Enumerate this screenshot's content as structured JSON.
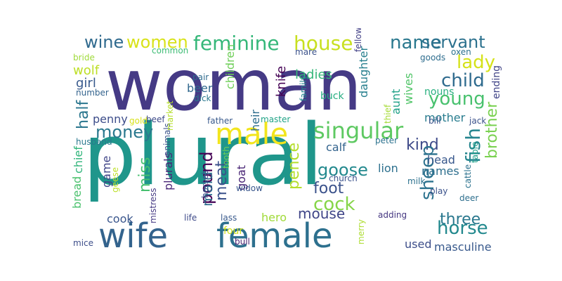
{
  "words": [
    {
      "text": "woman",
      "color": "#453a85"
    },
    {
      "text": "plural",
      "color": "#1f968b"
    },
    {
      "text": "wife",
      "color": "#33638d"
    },
    {
      "text": "female",
      "color": "#2d708e"
    },
    {
      "text": "male",
      "color": "#f2e51d"
    },
    {
      "text": "singular",
      "color": "#5ec962"
    },
    {
      "text": "feminine",
      "color": "#35b779"
    },
    {
      "text": "house",
      "color": "#c8e020"
    },
    {
      "text": "women",
      "color": "#d8e219"
    },
    {
      "text": "wine",
      "color": "#306a8e"
    },
    {
      "text": "name",
      "color": "#2a788e"
    },
    {
      "text": "servant",
      "color": "#2c718e"
    },
    {
      "text": "lady",
      "color": "#d5e21a"
    },
    {
      "text": "child",
      "color": "#2f6b8e"
    },
    {
      "text": "young",
      "color": "#48c16e"
    },
    {
      "text": "money",
      "color": "#2a788e"
    },
    {
      "text": "kind",
      "color": "#3e4a89"
    },
    {
      "text": "fish",
      "color": "#25858e"
    },
    {
      "text": "brother",
      "color": "#7ad151"
    },
    {
      "text": "goose",
      "color": "#23898e"
    },
    {
      "text": "cock",
      "color": "#86d549"
    },
    {
      "text": "sheep",
      "color": "#2c728e"
    },
    {
      "text": "horse",
      "color": "#23898e"
    },
    {
      "text": "three",
      "color": "#2a788e"
    },
    {
      "text": "foot",
      "color": "#3b528b"
    },
    {
      "text": "mouse",
      "color": "#404688"
    },
    {
      "text": "pound",
      "color": "#440154"
    },
    {
      "text": "pence",
      "color": "#b5de2b"
    },
    {
      "text": "half",
      "color": "#2a768e"
    },
    {
      "text": "miss",
      "color": "#46c06f"
    },
    {
      "text": "maid",
      "color": "#2e6d8e"
    },
    {
      "text": "meat",
      "color": "#3b518b"
    },
    {
      "text": "wolf",
      "color": "#bddf26"
    },
    {
      "text": "girl",
      "color": "#38598c"
    },
    {
      "text": "ladies",
      "color": "#35b779"
    },
    {
      "text": "beer",
      "color": "#31688e"
    },
    {
      "text": "knife",
      "color": "#440154"
    },
    {
      "text": "children",
      "color": "#6ece58"
    },
    {
      "text": "heir",
      "color": "#2e6e8e"
    },
    {
      "text": "daughter",
      "color": "#277f8e"
    },
    {
      "text": "aunt",
      "color": "#1fa187"
    },
    {
      "text": "wives",
      "color": "#52c569"
    },
    {
      "text": "nouns",
      "color": "#29af7f"
    },
    {
      "text": "ending",
      "color": "#414487"
    },
    {
      "text": "mother",
      "color": "#287c8e"
    },
    {
      "text": "penny",
      "color": "#3d4d8a"
    },
    {
      "text": "game",
      "color": "#404588"
    },
    {
      "text": "plurals",
      "color": "#482677"
    },
    {
      "text": "goat",
      "color": "#482475"
    },
    {
      "text": "head",
      "color": "#38588c"
    },
    {
      "text": "lion",
      "color": "#2d708e"
    },
    {
      "text": "names",
      "color": "#2e6f8e"
    },
    {
      "text": "calf",
      "color": "#33638d"
    },
    {
      "text": "hero",
      "color": "#a0da39"
    },
    {
      "text": "cook",
      "color": "#39558c"
    },
    {
      "text": "masculine",
      "color": "#38598c"
    },
    {
      "text": "used",
      "color": "#3d4e8a"
    },
    {
      "text": "bread",
      "color": "#4ac16d"
    },
    {
      "text": "chief",
      "color": "#31b57b"
    },
    {
      "text": "husband",
      "color": "#2a788e"
    },
    {
      "text": "geese",
      "color": "#bddf26"
    },
    {
      "text": "animals",
      "color": "#3b528b"
    },
    {
      "text": "mistress",
      "color": "#443983"
    },
    {
      "text": "life",
      "color": "#3e4a89"
    },
    {
      "text": "lass",
      "color": "#38598c"
    },
    {
      "text": "four",
      "color": "#d0e11c"
    },
    {
      "text": "bull",
      "color": "#482071"
    },
    {
      "text": "mice",
      "color": "#3d4e8a"
    },
    {
      "text": "merry",
      "color": "#addc30"
    },
    {
      "text": "adding",
      "color": "#453781"
    },
    {
      "text": "play",
      "color": "#3b528b"
    },
    {
      "text": "deer",
      "color": "#2e6f8e"
    },
    {
      "text": "cattle",
      "color": "#2c728e"
    },
    {
      "text": "table",
      "color": "#1f9e89"
    },
    {
      "text": "milk",
      "color": "#2c718e"
    },
    {
      "text": "church",
      "color": "#3b528b"
    },
    {
      "text": "widow",
      "color": "#39568c"
    },
    {
      "text": "horses",
      "color": "#3e4c8a"
    },
    {
      "text": "tooth",
      "color": "#6ece58"
    },
    {
      "text": "father",
      "color": "#38598c"
    },
    {
      "text": "master",
      "color": "#20a386"
    },
    {
      "text": "peter",
      "color": "#2c728e"
    },
    {
      "text": "jack",
      "color": "#3b518b"
    },
    {
      "text": "bill",
      "color": "#3b528b"
    },
    {
      "text": "thief",
      "color": "#a5db36"
    },
    {
      "text": "buck",
      "color": "#26ad81"
    },
    {
      "text": "family",
      "color": "#25838e"
    },
    {
      "text": "dick",
      "color": "#2a788e"
    },
    {
      "text": "pair",
      "color": "#2f6c8e"
    },
    {
      "text": "gold",
      "color": "#d8e219"
    },
    {
      "text": "beef",
      "color": "#3e4a89"
    },
    {
      "text": "market",
      "color": "#b5de2b"
    },
    {
      "text": "number",
      "color": "#33638d"
    },
    {
      "text": "bride",
      "color": "#9fda3a"
    },
    {
      "text": "common",
      "color": "#3dbc74"
    },
    {
      "text": "mare",
      "color": "#3b528b"
    },
    {
      "text": "fellow",
      "color": "#424086"
    },
    {
      "text": "goods",
      "color": "#2e6d8e"
    },
    {
      "text": "oxen",
      "color": "#2c728e"
    }
  ]
}
